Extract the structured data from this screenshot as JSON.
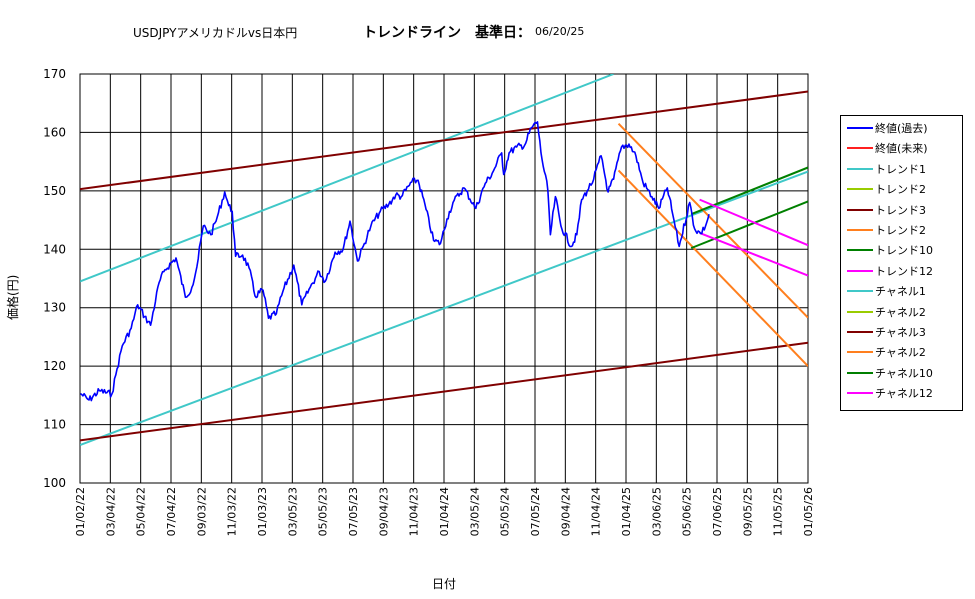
{
  "title": {
    "pair": "USDJPYアメリカドルvs日本円",
    "main": "トレンドライン　基準日：",
    "date": "06/20/25"
  },
  "chart_data": {
    "type": "line",
    "ylabel": "価格(円)",
    "xlabel": "日付",
    "ylim": [
      100,
      170
    ],
    "yticks": [
      "100",
      "110",
      "120",
      "130",
      "140",
      "150",
      "160",
      "170"
    ],
    "xlim": [
      "2022-01-02",
      "2026-01-05"
    ],
    "xticks": [
      "01/02/22",
      "03/04/22",
      "05/04/22",
      "07/04/22",
      "09/03/22",
      "11/03/22",
      "01/03/23",
      "03/05/23",
      "05/05/23",
      "07/05/23",
      "09/04/23",
      "11/04/23",
      "01/04/24",
      "03/05/24",
      "05/05/24",
      "07/05/24",
      "09/04/24",
      "11/04/24",
      "01/04/25",
      "03/06/25",
      "05/06/25",
      "07/06/25",
      "09/05/25",
      "11/05/25",
      "01/05/26"
    ],
    "grid": true,
    "legend_position": "right",
    "price_series": {
      "name": "終値(過去)",
      "color": "#0000ff",
      "points": [
        [
          "2022-01-03",
          115.3
        ],
        [
          "2022-01-20",
          114.2
        ],
        [
          "2022-02-10",
          115.8
        ],
        [
          "2022-03-07",
          115.2
        ],
        [
          "2022-03-15",
          118.5
        ],
        [
          "2022-03-28",
          123.5
        ],
        [
          "2022-04-15",
          126.5
        ],
        [
          "2022-04-28",
          130.5
        ],
        [
          "2022-05-12",
          128.5
        ],
        [
          "2022-05-24",
          127.0
        ],
        [
          "2022-06-10",
          134.3
        ],
        [
          "2022-06-22",
          136.5
        ],
        [
          "2022-07-14",
          138.5
        ],
        [
          "2022-08-02",
          131.8
        ],
        [
          "2022-08-15",
          133.5
        ],
        [
          "2022-08-25",
          137.0
        ],
        [
          "2022-09-07",
          144.0
        ],
        [
          "2022-09-22",
          142.5
        ],
        [
          "2022-10-05",
          145.5
        ],
        [
          "2022-10-20",
          149.8
        ],
        [
          "2022-10-28",
          147.5
        ],
        [
          "2022-11-04",
          146.5
        ],
        [
          "2022-11-11",
          138.8
        ],
        [
          "2022-11-25",
          139.0
        ],
        [
          "2022-12-08",
          136.8
        ],
        [
          "2022-12-20",
          132.0
        ],
        [
          "2023-01-05",
          133.0
        ],
        [
          "2023-01-16",
          128.2
        ],
        [
          "2023-02-01",
          129.0
        ],
        [
          "2023-02-14",
          132.8
        ],
        [
          "2023-03-08",
          137.3
        ],
        [
          "2023-03-24",
          130.5
        ],
        [
          "2023-04-10",
          133.5
        ],
        [
          "2023-04-28",
          136.2
        ],
        [
          "2023-05-10",
          134.5
        ],
        [
          "2023-05-30",
          139.5
        ],
        [
          "2023-06-15",
          140.0
        ],
        [
          "2023-06-29",
          144.8
        ],
        [
          "2023-07-14",
          138.0
        ],
        [
          "2023-07-28",
          141.0
        ],
        [
          "2023-08-10",
          144.0
        ],
        [
          "2023-08-29",
          146.5
        ],
        [
          "2023-09-15",
          147.7
        ],
        [
          "2023-09-29",
          149.3
        ],
        [
          "2023-10-10",
          149.0
        ],
        [
          "2023-10-31",
          151.5
        ],
        [
          "2023-11-13",
          151.8
        ],
        [
          "2023-11-29",
          146.8
        ],
        [
          "2023-12-14",
          141.5
        ],
        [
          "2023-12-28",
          141.0
        ],
        [
          "2024-01-10",
          145.2
        ],
        [
          "2024-01-22",
          148.0
        ],
        [
          "2024-02-13",
          150.5
        ],
        [
          "2024-03-08",
          147.0
        ],
        [
          "2024-03-27",
          151.3
        ],
        [
          "2024-04-10",
          153.0
        ],
        [
          "2024-04-29",
          156.5
        ],
        [
          "2024-05-03",
          152.8
        ],
        [
          "2024-05-14",
          156.5
        ],
        [
          "2024-05-29",
          157.5
        ],
        [
          "2024-06-14",
          157.8
        ],
        [
          "2024-06-28",
          160.8
        ],
        [
          "2024-07-10",
          161.8
        ],
        [
          "2024-07-17",
          156.5
        ],
        [
          "2024-07-31",
          150.0
        ],
        [
          "2024-08-05",
          142.5
        ],
        [
          "2024-08-15",
          149.0
        ],
        [
          "2024-08-26",
          144.0
        ],
        [
          "2024-09-16",
          140.5
        ],
        [
          "2024-09-27",
          142.5
        ],
        [
          "2024-10-07",
          148.5
        ],
        [
          "2024-10-18",
          150.0
        ],
        [
          "2024-10-31",
          152.0
        ],
        [
          "2024-11-15",
          156.0
        ],
        [
          "2024-11-29",
          149.8
        ],
        [
          "2024-12-10",
          152.0
        ],
        [
          "2024-12-26",
          157.5
        ],
        [
          "2025-01-10",
          158.0
        ],
        [
          "2025-01-24",
          156.0
        ],
        [
          "2025-02-07",
          151.5
        ],
        [
          "2025-02-25",
          149.0
        ],
        [
          "2025-03-11",
          147.0
        ],
        [
          "2025-03-28",
          150.5
        ],
        [
          "2025-04-08",
          146.0
        ],
        [
          "2025-04-21",
          140.5
        ],
        [
          "2025-05-12",
          148.0
        ],
        [
          "2025-05-22",
          143.5
        ],
        [
          "2025-06-03",
          142.7
        ],
        [
          "2025-06-13",
          144.0
        ],
        [
          "2025-06-20",
          146.0
        ]
      ]
    },
    "lines": [
      {
        "color": "#40c8c8",
        "segments": [
          [
            [
              "2022-01-02",
              134.5
            ],
            [
              "2024-12-10",
              170.0
            ]
          ],
          [
            [
              "2022-01-02",
              106.5
            ],
            [
              "2026-01-05",
              153.3
            ]
          ]
        ]
      },
      {
        "color": "#800000",
        "segments": [
          [
            [
              "2022-01-02",
              150.3
            ],
            [
              "2026-01-05",
              167.0
            ]
          ],
          [
            [
              "2022-01-02",
              107.3
            ],
            [
              "2026-01-05",
              124.0
            ]
          ]
        ]
      },
      {
        "color": "#ff7f1e",
        "segments": [
          [
            [
              "2024-12-20",
              161.5
            ],
            [
              "2026-01-05",
              128.3
            ]
          ],
          [
            [
              "2024-12-20",
              153.5
            ],
            [
              "2026-01-05",
              120.0
            ]
          ]
        ]
      },
      {
        "color": "#008000",
        "segments": [
          [
            [
              "2025-05-15",
              146.0
            ],
            [
              "2026-01-05",
              154.0
            ]
          ],
          [
            [
              "2025-05-15",
              140.2
            ],
            [
              "2026-01-05",
              148.2
            ]
          ]
        ]
      },
      {
        "color": "#ff00ff",
        "segments": [
          [
            [
              "2025-06-01",
              148.5
            ],
            [
              "2026-01-05",
              140.7
            ]
          ],
          [
            [
              "2025-06-01",
              142.8
            ],
            [
              "2026-01-05",
              135.5
            ]
          ]
        ]
      }
    ]
  },
  "legend": [
    {
      "label": "終値(過去)",
      "color": "#0000ff"
    },
    {
      "label": "終値(未来)",
      "color": "#ff2020"
    },
    {
      "label": "トレンド1",
      "color": "#40c8c8"
    },
    {
      "label": "トレンド2",
      "color": "#99cc00"
    },
    {
      "label": "トレンド3",
      "color": "#800000"
    },
    {
      "label": "トレンド2",
      "color": "#ff7f1e"
    },
    {
      "label": "トレンド10",
      "color": "#008000"
    },
    {
      "label": "トレンド12",
      "color": "#ff00ff"
    },
    {
      "label": "チャネル1",
      "color": "#40c8c8"
    },
    {
      "label": "チャネル2",
      "color": "#99cc00"
    },
    {
      "label": "チャネル3",
      "color": "#800000"
    },
    {
      "label": "チャネル2",
      "color": "#ff7f1e"
    },
    {
      "label": "チャネル10",
      "color": "#008000"
    },
    {
      "label": "チャネル12",
      "color": "#ff00ff"
    }
  ]
}
